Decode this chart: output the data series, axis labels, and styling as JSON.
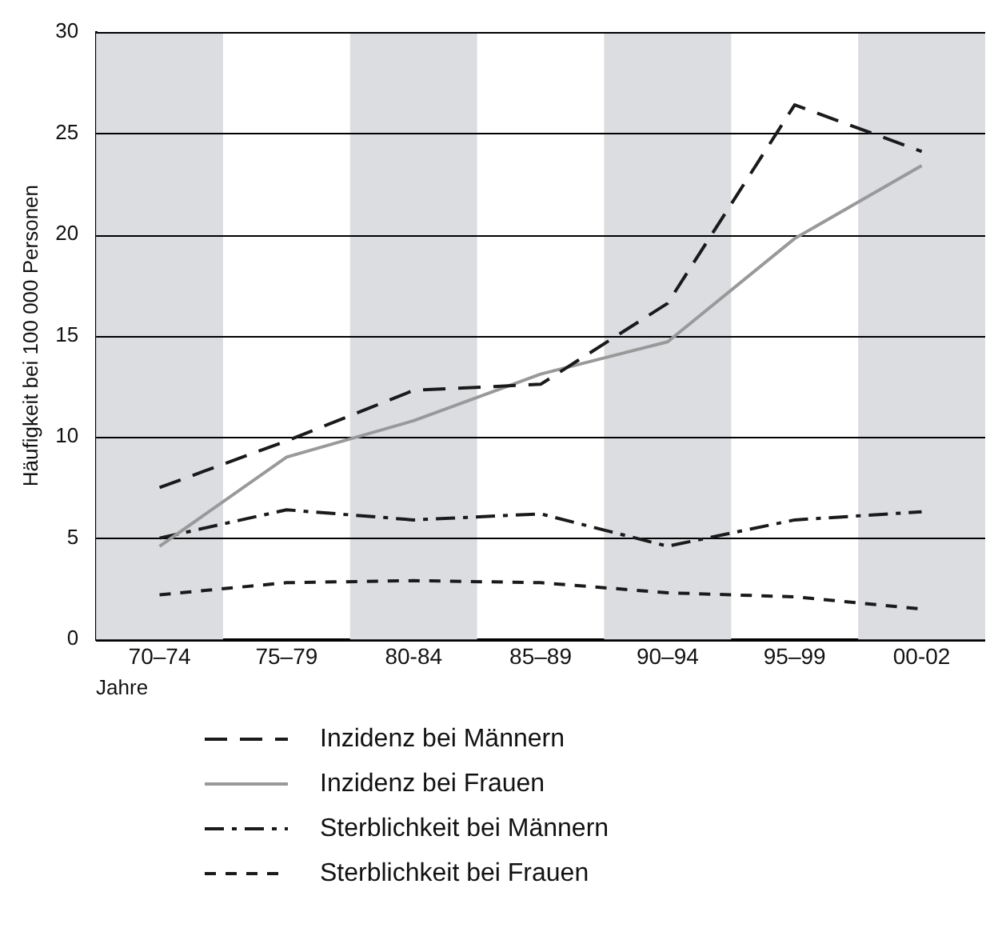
{
  "chart_data": {
    "type": "line",
    "ylabel": "Häufigkeit bei 100 000 Personen",
    "xlabel": "Jahre",
    "categories": [
      "70–74",
      "75–79",
      "80-84",
      "85–89",
      "90–94",
      "95–99",
      "00-02"
    ],
    "series": [
      {
        "name": "Inzidenz bei Männern",
        "color": "#1a1a1a",
        "line_style": "dashed",
        "values": [
          7.5,
          9.8,
          12.3,
          12.6,
          16.6,
          26.4,
          24.1
        ]
      },
      {
        "name": "Inzidenz bei Frauen",
        "color": "#999999",
        "line_style": "solid",
        "values": [
          4.6,
          9.0,
          10.8,
          13.1,
          14.7,
          19.8,
          23.4
        ]
      },
      {
        "name": "Sterblichkeit bei Männern",
        "color": "#1a1a1a",
        "line_style": "dashed",
        "values": [
          5.0,
          6.4,
          5.9,
          6.2,
          4.6,
          5.9,
          6.3
        ]
      },
      {
        "name": "Sterblichkeit bei Frauen",
        "color": "#1a1a1a",
        "line_style": "dashed",
        "values": [
          2.2,
          2.8,
          2.9,
          2.8,
          2.3,
          2.1,
          1.5
        ]
      }
    ],
    "bands": [
      {
        "axis": "x",
        "from": "70–74",
        "to": "70–74",
        "color": "#dcdde0"
      },
      {
        "axis": "x",
        "from": "80-84",
        "to": "80-84",
        "color": "#dcdde0"
      },
      {
        "axis": "x",
        "from": "90–94",
        "to": "90–94",
        "color": "#dcdde0"
      },
      {
        "axis": "x",
        "from": "00-02",
        "to": "00-02",
        "color": "#dcdde0"
      }
    ],
    "ylim": [
      0,
      30
    ],
    "yticks": [
      0,
      5,
      10,
      15,
      20,
      25,
      30
    ],
    "grid": "y",
    "legend": "bottom",
    "marker": "none"
  }
}
